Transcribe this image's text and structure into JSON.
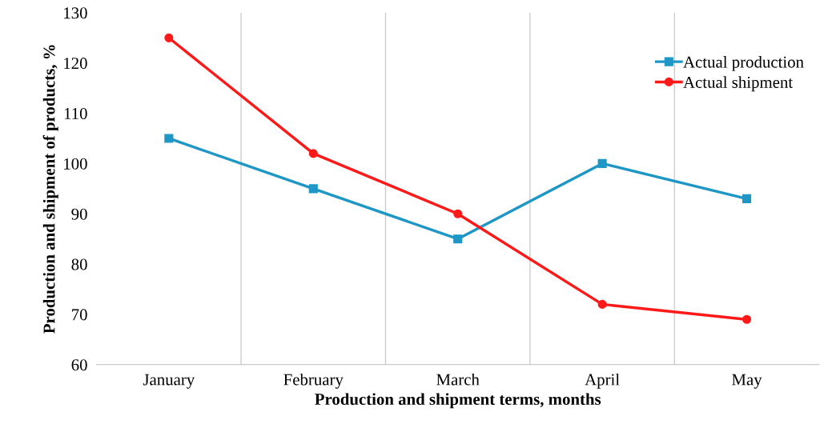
{
  "chart_data": {
    "type": "line",
    "xlabel": "Production and shipment terms, months",
    "ylabel": "Production and shipment of products, %",
    "categories": [
      "January",
      "February",
      "March",
      "April",
      "May"
    ],
    "series": [
      {
        "name": "Actual production",
        "color": "#1f97c6",
        "marker": "square",
        "values": [
          105,
          95,
          85,
          100,
          93
        ]
      },
      {
        "name": "Actual shipment",
        "color": "#ff1a1a",
        "marker": "circle",
        "values": [
          125,
          102,
          90,
          72,
          69
        ]
      }
    ],
    "ylim": [
      60,
      130
    ],
    "yticks": [
      60,
      70,
      80,
      90,
      100,
      110,
      120,
      130
    ],
    "grid": "x",
    "legend": "top right",
    "line_style": "solid"
  }
}
